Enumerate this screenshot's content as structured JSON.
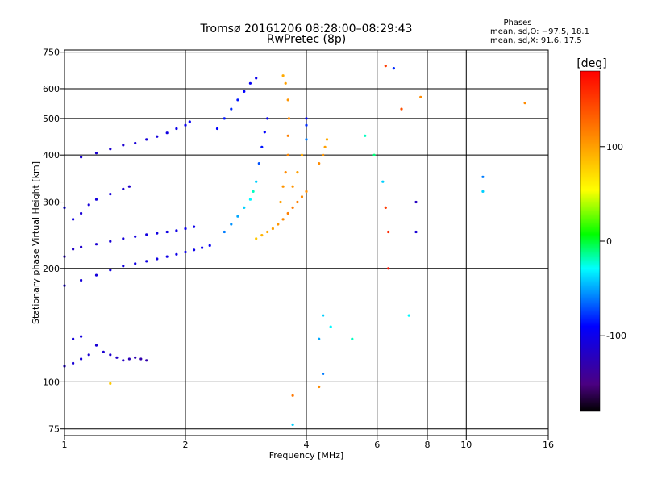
{
  "chart_data": {
    "type": "scatter",
    "title": "Tromsø 20161206 08:28:00–08:29:43",
    "subtitle": "RwPretec (8p)",
    "xlabel": "Frequency [MHz]",
    "ylabel": "Stationary phase Virtual Height [km]",
    "x_scale": "log",
    "y_scale": "log",
    "xlim": [
      1,
      16
    ],
    "ylim": [
      72,
      760
    ],
    "x_ticks": [
      1,
      2,
      4,
      6,
      8,
      10,
      16
    ],
    "x_tick_labels": [
      "1",
      "2",
      "4",
      "6",
      "8",
      "10",
      "16"
    ],
    "y_ticks": [
      75,
      100,
      200,
      300,
      400,
      500,
      600,
      750
    ],
    "y_tick_labels": [
      "75",
      "100",
      "200",
      "300",
      "400",
      "500",
      "600",
      "750"
    ],
    "grid": true,
    "phase_stats": {
      "heading": "Phases",
      "line_o": "mean, sd,O: −97.5, 18.1",
      "line_x": "mean, sd,X:  91.6, 17.5"
    },
    "colorbar": {
      "label": "[deg]",
      "range": [
        -180,
        180
      ],
      "ticks": [
        100,
        0,
        -100
      ],
      "tick_labels": [
        "100",
        "0",
        "-100"
      ]
    },
    "series": [
      {
        "points": [
          [
            1.0,
            180,
            -110
          ],
          [
            1.1,
            186,
            -108
          ],
          [
            1.2,
            192,
            -107
          ],
          [
            1.3,
            198,
            -106
          ],
          [
            1.4,
            203,
            -105
          ],
          [
            1.5,
            206,
            -104
          ],
          [
            1.6,
            209,
            -103
          ],
          [
            1.7,
            212,
            -103
          ],
          [
            1.8,
            215,
            -102
          ],
          [
            1.9,
            218,
            -101
          ],
          [
            2.0,
            221,
            -100
          ],
          [
            2.1,
            224,
            -100
          ],
          [
            2.2,
            227,
            -98
          ],
          [
            2.3,
            230,
            -95
          ],
          [
            1.0,
            215,
            -120
          ],
          [
            1.05,
            225,
            -118
          ],
          [
            1.1,
            228,
            -115
          ],
          [
            1.2,
            232,
            -112
          ],
          [
            1.3,
            236,
            -110
          ],
          [
            1.4,
            240,
            -108
          ],
          [
            1.5,
            243,
            -106
          ],
          [
            1.6,
            246,
            -105
          ],
          [
            1.7,
            248,
            -104
          ],
          [
            1.8,
            250,
            -103
          ],
          [
            1.9,
            252,
            -102
          ],
          [
            2.0,
            255,
            -101
          ],
          [
            2.1,
            258,
            -100
          ],
          [
            1.1,
            395,
            -110
          ],
          [
            1.2,
            405,
            -112
          ],
          [
            1.3,
            415,
            -113
          ],
          [
            1.4,
            425,
            -112
          ],
          [
            1.5,
            430,
            -110
          ],
          [
            1.6,
            440,
            -108
          ],
          [
            1.7,
            448,
            -106
          ],
          [
            1.8,
            458,
            -104
          ],
          [
            1.9,
            470,
            -100
          ],
          [
            2.0,
            480,
            -98
          ],
          [
            2.05,
            490,
            -95
          ],
          [
            1.0,
            290,
            -100
          ],
          [
            1.05,
            270,
            -105
          ],
          [
            1.1,
            280,
            -110
          ],
          [
            1.15,
            295,
            -108
          ],
          [
            1.2,
            305,
            -106
          ],
          [
            1.3,
            315,
            -108
          ],
          [
            1.4,
            325,
            -112
          ],
          [
            1.45,
            330,
            -115
          ],
          [
            1.0,
            110,
            -115
          ],
          [
            1.05,
            112,
            -110
          ],
          [
            1.1,
            115,
            -108
          ],
          [
            1.15,
            118,
            -112
          ],
          [
            1.2,
            125,
            -110
          ],
          [
            1.25,
            120,
            -112
          ],
          [
            1.3,
            118,
            -115
          ],
          [
            1.35,
            116,
            -118
          ],
          [
            1.4,
            114,
            -120
          ],
          [
            1.45,
            115,
            -125
          ],
          [
            1.5,
            116,
            -128
          ],
          [
            1.55,
            115,
            -130
          ],
          [
            1.6,
            114,
            -130
          ],
          [
            1.05,
            130,
            -108
          ],
          [
            1.1,
            132,
            -106
          ],
          [
            2.5,
            250,
            -60
          ],
          [
            2.6,
            262,
            -55
          ],
          [
            2.7,
            275,
            -50
          ],
          [
            2.8,
            290,
            -40
          ],
          [
            2.9,
            305,
            -30
          ],
          [
            2.95,
            320,
            -20
          ],
          [
            3.0,
            340,
            -40
          ],
          [
            3.05,
            380,
            -70
          ],
          [
            3.1,
            420,
            -85
          ],
          [
            3.15,
            460,
            -90
          ],
          [
            3.2,
            500,
            -95
          ],
          [
            2.4,
            470,
            -90
          ],
          [
            2.5,
            500,
            -85
          ],
          [
            2.6,
            530,
            -80
          ],
          [
            2.7,
            560,
            -85
          ],
          [
            2.8,
            590,
            -90
          ],
          [
            2.9,
            620,
            -95
          ],
          [
            3.0,
            640,
            -100
          ],
          [
            3.0,
            240,
            80
          ],
          [
            3.1,
            245,
            90
          ],
          [
            3.2,
            250,
            95
          ],
          [
            3.3,
            255,
            100
          ],
          [
            3.4,
            262,
            105
          ],
          [
            3.5,
            270,
            110
          ],
          [
            3.6,
            280,
            115
          ],
          [
            3.7,
            290,
            118
          ],
          [
            3.8,
            300,
            115
          ],
          [
            3.9,
            310,
            110
          ],
          [
            4.0,
            320,
            108
          ],
          [
            3.45,
            300,
            100
          ],
          [
            3.5,
            330,
            105
          ],
          [
            3.55,
            360,
            110
          ],
          [
            3.6,
            400,
            112
          ],
          [
            3.6,
            450,
            115
          ],
          [
            3.62,
            500,
            110
          ],
          [
            3.6,
            560,
            105
          ],
          [
            3.55,
            620,
            100
          ],
          [
            3.5,
            650,
            95
          ],
          [
            3.7,
            330,
            105
          ],
          [
            3.8,
            360,
            100
          ],
          [
            3.9,
            400,
            95
          ],
          [
            4.0,
            440,
            -60
          ],
          [
            4.0,
            480,
            -80
          ],
          [
            4.0,
            500,
            -90
          ],
          [
            4.3,
            380,
            110
          ],
          [
            4.4,
            400,
            105
          ],
          [
            4.45,
            420,
            100
          ],
          [
            4.5,
            440,
            95
          ],
          [
            4.3,
            130,
            -50
          ],
          [
            4.4,
            150,
            -40
          ],
          [
            4.6,
            140,
            -30
          ],
          [
            5.2,
            130,
            -20
          ],
          [
            4.4,
            105,
            -60
          ],
          [
            5.6,
            450,
            -20
          ],
          [
            5.9,
            400,
            -10
          ],
          [
            6.2,
            340,
            -40
          ],
          [
            6.3,
            290,
            150
          ],
          [
            6.4,
            250,
            160
          ],
          [
            6.4,
            200,
            170
          ],
          [
            6.6,
            680,
            -80
          ],
          [
            6.3,
            690,
            150
          ],
          [
            6.9,
            530,
            140
          ],
          [
            7.5,
            300,
            -120
          ],
          [
            7.5,
            250,
            -110
          ],
          [
            7.2,
            150,
            -30
          ],
          [
            7.7,
            570,
            110
          ],
          [
            11.0,
            350,
            -60
          ],
          [
            11.0,
            320,
            -40
          ],
          [
            14.0,
            550,
            110
          ],
          [
            3.7,
            77,
            -40
          ],
          [
            3.7,
            92,
            120
          ],
          [
            4.3,
            97,
            110
          ],
          [
            1.3,
            99,
            80
          ]
        ]
      }
    ]
  }
}
